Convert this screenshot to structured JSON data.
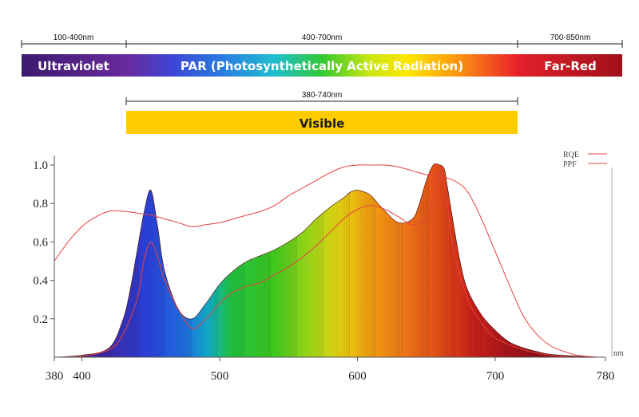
{
  "bands": {
    "uv": {
      "range_label": "100-400nm",
      "name": "Ultraviolet",
      "color_start": "#3b1a6e",
      "color_end": "#6a2a9c"
    },
    "par": {
      "range_label": "400-700nm",
      "name": "PAR (Photosynthetically Active Radiation)"
    },
    "far_red": {
      "range_label": "700-850nm",
      "name": "Far-Red",
      "color_start": "#e2202a",
      "color_end": "#a0101a"
    },
    "visible": {
      "range_label": "380-740nm",
      "name": "Visible",
      "color": "#ffcc00"
    }
  },
  "chart_data": {
    "type": "area",
    "xlabel": "nm",
    "ylabel": "",
    "xlim": [
      380,
      780
    ],
    "ylim": [
      0,
      1.05
    ],
    "x_ticks": [
      "380",
      "400",
      "500",
      "600",
      "700",
      "780"
    ],
    "y_ticks": [
      "0.2",
      "0.4",
      "0.6",
      "0.8",
      "1.0"
    ],
    "legend": {
      "position": "top-right",
      "entries": [
        "RQE",
        "PPF"
      ]
    },
    "series": [
      {
        "name": "RQE",
        "color": "#e84040",
        "style": "line",
        "x": [
          380,
          390,
          400,
          410,
          420,
          430,
          440,
          450,
          460,
          470,
          480,
          490,
          500,
          510,
          520,
          530,
          540,
          550,
          560,
          570,
          580,
          590,
          600,
          610,
          620,
          630,
          640,
          650,
          660,
          670,
          680,
          690,
          700,
          710,
          720,
          730,
          740,
          750,
          760,
          775
        ],
        "values": [
          0.5,
          0.6,
          0.68,
          0.73,
          0.76,
          0.76,
          0.75,
          0.74,
          0.72,
          0.7,
          0.68,
          0.69,
          0.7,
          0.72,
          0.74,
          0.76,
          0.79,
          0.84,
          0.88,
          0.92,
          0.96,
          0.99,
          1.0,
          1.0,
          1.0,
          0.99,
          0.97,
          0.95,
          0.94,
          0.92,
          0.86,
          0.72,
          0.55,
          0.38,
          0.22,
          0.12,
          0.06,
          0.03,
          0.01,
          0.0
        ]
      },
      {
        "name": "PPF",
        "color": "#e84040",
        "style": "line",
        "x": [
          380,
          400,
          420,
          430,
          440,
          445,
          450,
          455,
          460,
          470,
          480,
          490,
          500,
          510,
          520,
          530,
          540,
          550,
          560,
          570,
          580,
          590,
          600,
          610,
          620,
          630,
          640,
          650,
          655,
          660,
          665,
          670,
          680,
          690,
          700,
          720,
          740,
          760,
          775
        ],
        "values": [
          0.0,
          0.005,
          0.04,
          0.12,
          0.3,
          0.5,
          0.6,
          0.52,
          0.4,
          0.25,
          0.15,
          0.2,
          0.28,
          0.34,
          0.37,
          0.39,
          0.43,
          0.47,
          0.52,
          0.58,
          0.65,
          0.72,
          0.77,
          0.79,
          0.77,
          0.73,
          0.69,
          0.72,
          0.82,
          0.97,
          0.82,
          0.55,
          0.3,
          0.18,
          0.1,
          0.04,
          0.01,
          0.0,
          0.0
        ]
      },
      {
        "name": "",
        "color": "spectrum",
        "style": "fill",
        "x": [
          380,
          400,
          420,
          430,
          435,
          440,
          445,
          450,
          455,
          460,
          470,
          480,
          490,
          500,
          510,
          520,
          530,
          540,
          550,
          560,
          570,
          580,
          590,
          595,
          600,
          605,
          610,
          620,
          630,
          640,
          645,
          650,
          655,
          660,
          663,
          665,
          670,
          675,
          680,
          690,
          700,
          710,
          720,
          730,
          740,
          760,
          775
        ],
        "values": [
          0.0,
          0.01,
          0.05,
          0.2,
          0.35,
          0.55,
          0.75,
          0.87,
          0.68,
          0.45,
          0.25,
          0.2,
          0.28,
          0.38,
          0.45,
          0.5,
          0.53,
          0.56,
          0.6,
          0.65,
          0.72,
          0.78,
          0.83,
          0.86,
          0.87,
          0.86,
          0.84,
          0.76,
          0.7,
          0.72,
          0.8,
          0.92,
          1.0,
          1.0,
          0.98,
          0.9,
          0.68,
          0.48,
          0.35,
          0.22,
          0.14,
          0.08,
          0.05,
          0.03,
          0.015,
          0.005,
          0.0
        ]
      }
    ]
  }
}
